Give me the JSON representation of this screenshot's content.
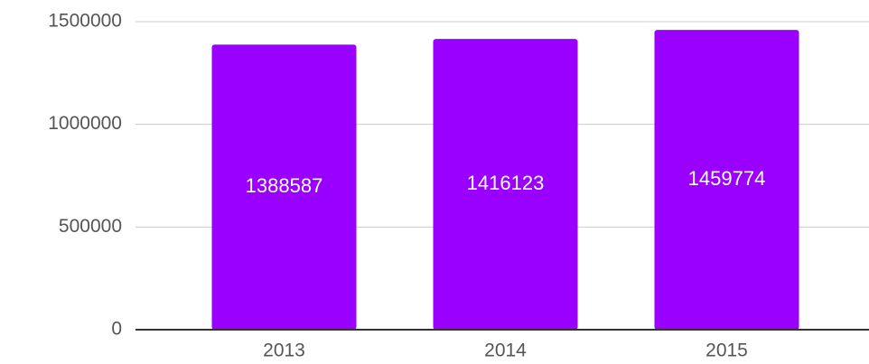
{
  "chart_data": {
    "type": "bar",
    "categories": [
      "2013",
      "2014",
      "2015"
    ],
    "values": [
      1388587,
      1416123,
      1459774
    ],
    "color": "#9900ff",
    "ylim": [
      0,
      1500000
    ],
    "yticks": [
      0,
      500000,
      1000000,
      1500000
    ],
    "grid": true
  }
}
